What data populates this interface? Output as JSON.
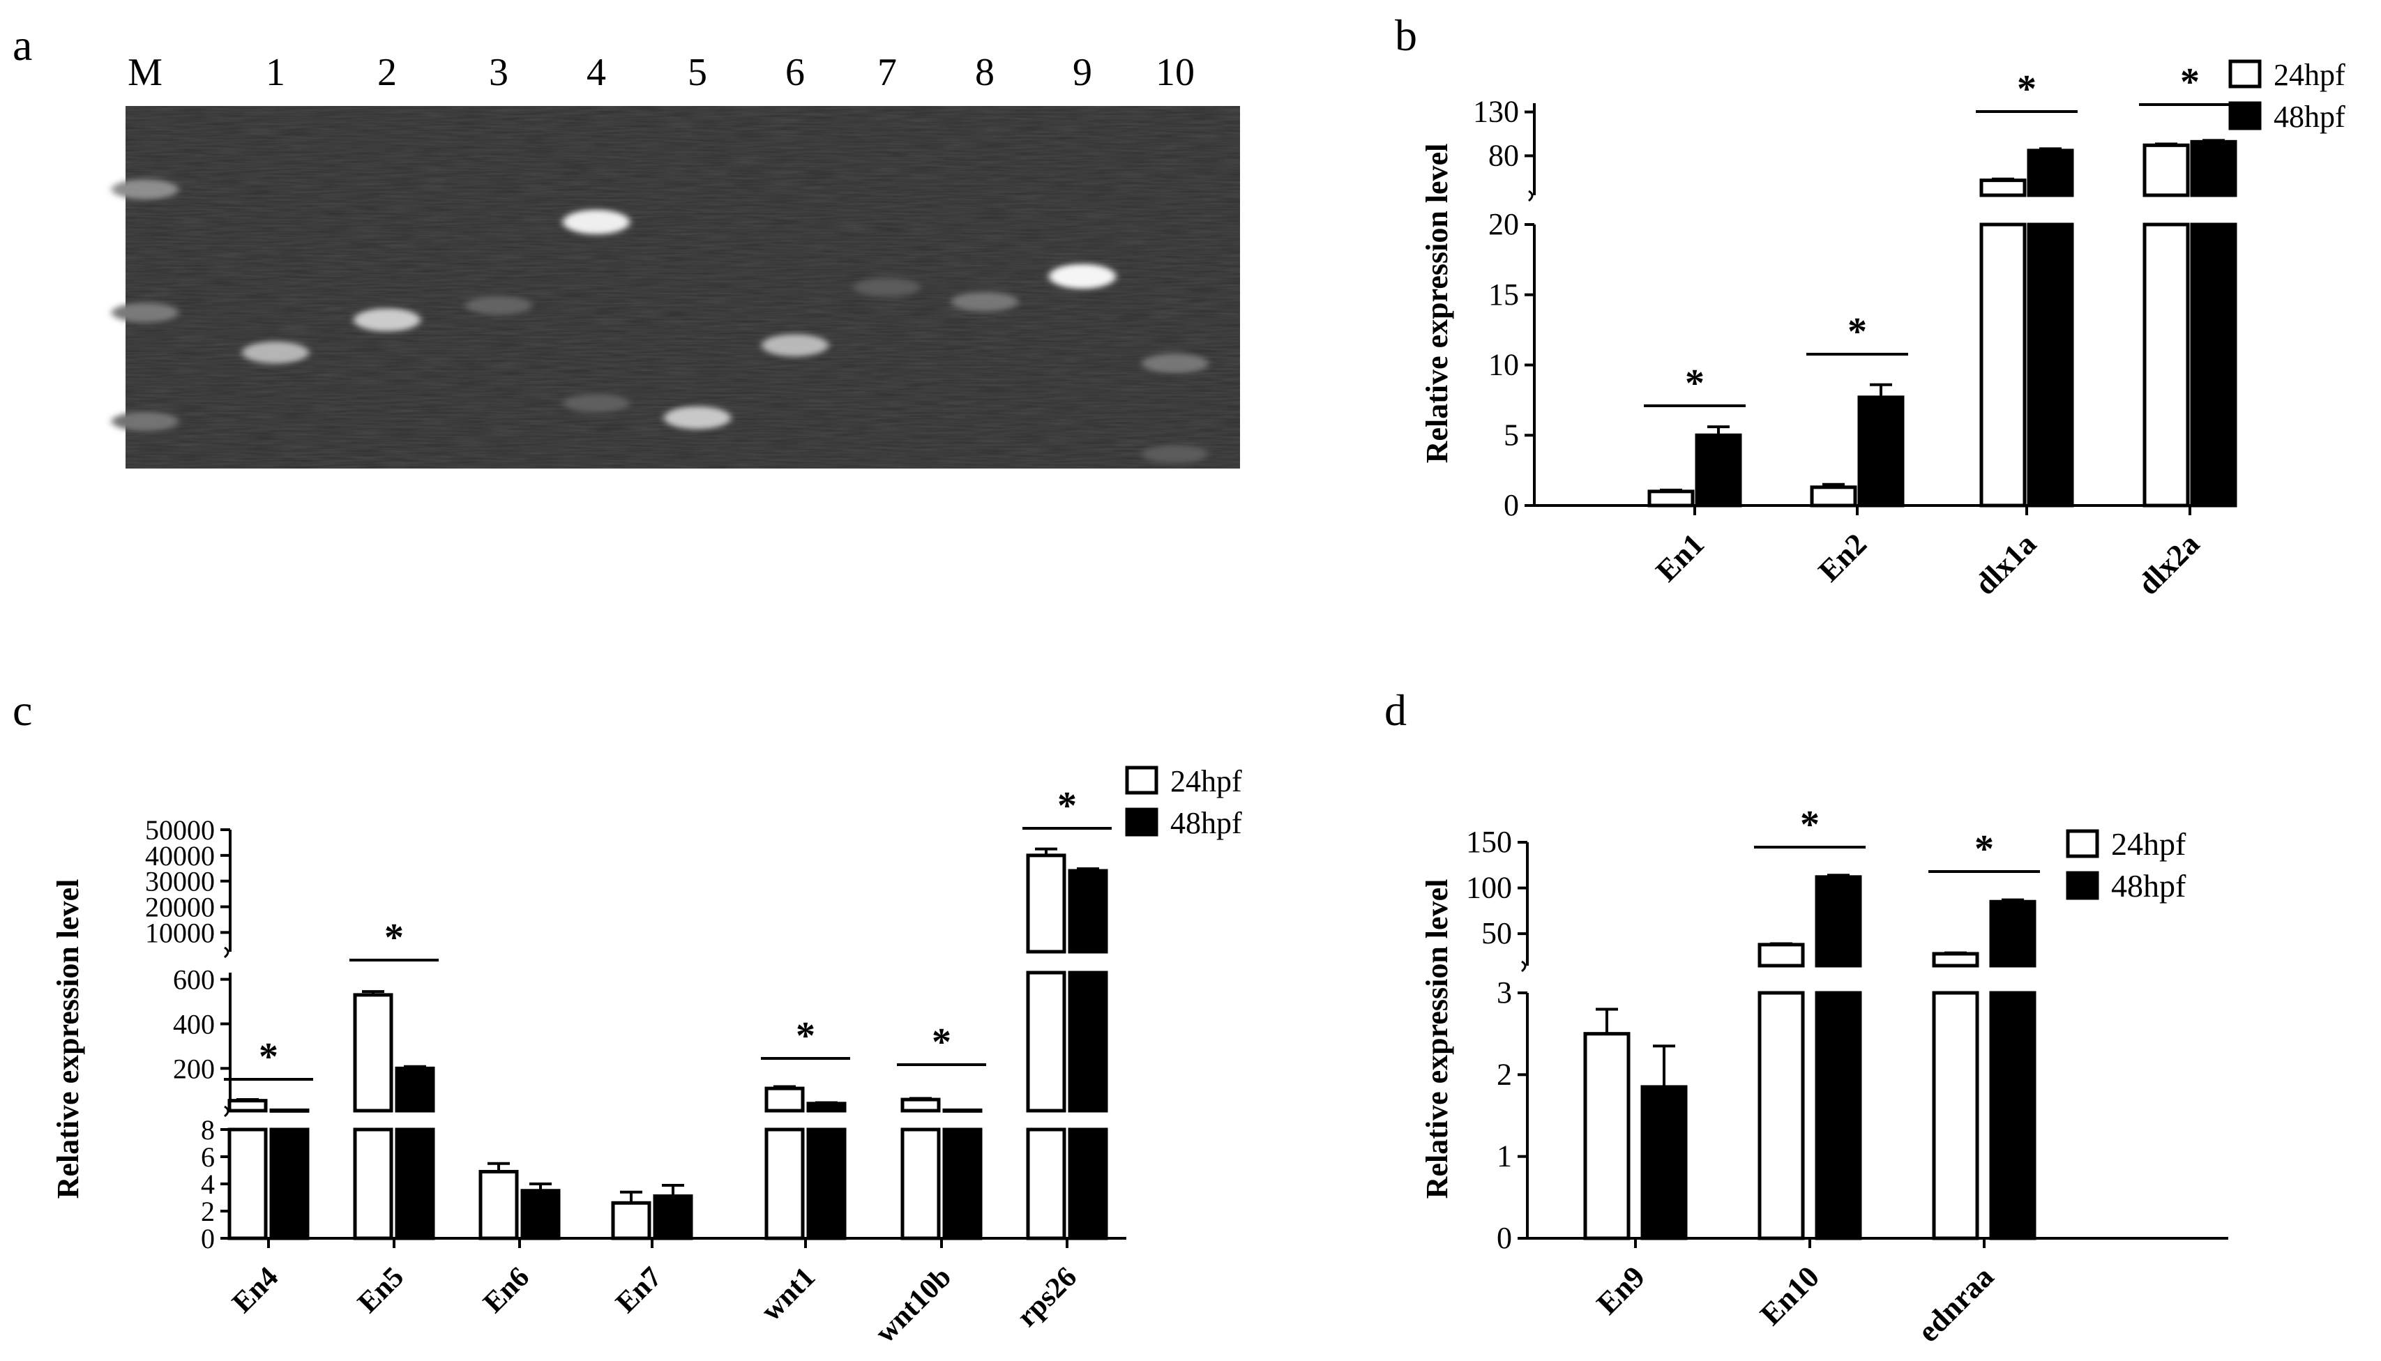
{
  "figure": {
    "panel_labels": {
      "a": "a",
      "b": "b",
      "c": "c",
      "d": "d"
    }
  },
  "gel": {
    "lane_labels": [
      "M",
      "1",
      "2",
      "3",
      "4",
      "5",
      "6",
      "7",
      "8",
      "9",
      "10"
    ],
    "marker_bands": [
      0.23,
      0.57,
      0.87
    ],
    "bands": [
      {
        "lane": "M",
        "pos": 0.23,
        "intensity": 0.42
      },
      {
        "lane": "M",
        "pos": 0.57,
        "intensity": 0.32
      },
      {
        "lane": "M",
        "pos": 0.87,
        "intensity": 0.28
      },
      {
        "lane": "1",
        "pos": 0.68,
        "intensity": 0.62
      },
      {
        "lane": "2",
        "pos": 0.59,
        "intensity": 0.74
      },
      {
        "lane": "3",
        "pos": 0.55,
        "intensity": 0.2
      },
      {
        "lane": "4",
        "pos": 0.32,
        "intensity": 0.92
      },
      {
        "lane": "4",
        "pos": 0.82,
        "intensity": 0.18
      },
      {
        "lane": "5",
        "pos": 0.86,
        "intensity": 0.72
      },
      {
        "lane": "6",
        "pos": 0.66,
        "intensity": 0.64
      },
      {
        "lane": "7",
        "pos": 0.5,
        "intensity": 0.16
      },
      {
        "lane": "8",
        "pos": 0.54,
        "intensity": 0.3
      },
      {
        "lane": "9",
        "pos": 0.47,
        "intensity": 0.95
      },
      {
        "lane": "10",
        "pos": 0.71,
        "intensity": 0.3
      },
      {
        "lane": "10",
        "pos": 0.96,
        "intensity": 0.16
      }
    ]
  },
  "chart_data": [
    {
      "panel": "b",
      "type": "bar",
      "ylabel": "Relative expression level",
      "categories": [
        "En1",
        "En2",
        "dlx1a",
        "dlx2a"
      ],
      "series": [
        {
          "name": "24hpf",
          "values": [
            1.0,
            1.3,
            52,
            92
          ],
          "errors": [
            0.1,
            0.2,
            1.5,
            1.5
          ],
          "color": "#ffffff"
        },
        {
          "name": "48hpf",
          "values": [
            5.0,
            7.7,
            86,
            96
          ],
          "errors": [
            0.6,
            0.9,
            2,
            1.5
          ],
          "color": "#000000"
        }
      ],
      "y_axis_segments": [
        {
          "range": [
            0,
            20
          ],
          "ticks": [
            0,
            5,
            10,
            15,
            20
          ],
          "tick_labels": [
            "0",
            "5",
            "10",
            "15",
            "20"
          ]
        },
        {
          "range": [
            35,
            140
          ],
          "ticks": [
            80,
            130
          ],
          "tick_labels": [
            "80",
            "130"
          ]
        }
      ],
      "significance": [
        {
          "category": "En1",
          "label": "*"
        },
        {
          "category": "En2",
          "label": "*"
        },
        {
          "category": "dlx1a",
          "label": "*"
        },
        {
          "category": "dlx2a",
          "label": "*"
        }
      ],
      "legend": {
        "position": "top-right",
        "entries": [
          "24hpf",
          "48hpf"
        ]
      }
    },
    {
      "panel": "c",
      "type": "bar",
      "ylabel": "Relative expression level",
      "categories": [
        "En4",
        "En5",
        "En6",
        "En7",
        "wnt1",
        "wnt10b",
        "rps26"
      ],
      "series": [
        {
          "name": "24hpf",
          "values": [
            55,
            530,
            4.9,
            2.6,
            110,
            60,
            40000
          ],
          "errors": [
            5,
            15,
            0.6,
            0.8,
            8,
            5,
            2500
          ],
          "color": "#ffffff"
        },
        {
          "name": "48hpf",
          "values": [
            12,
            200,
            3.5,
            3.1,
            42,
            12,
            34000
          ],
          "errors": [
            2,
            8,
            0.5,
            0.8,
            4,
            2,
            800
          ],
          "color": "#000000"
        }
      ],
      "y_axis_segments": [
        {
          "range": [
            0,
            8
          ],
          "ticks": [
            0,
            2,
            4,
            6,
            8
          ],
          "tick_labels": [
            "0",
            "2",
            "4",
            "6",
            "8"
          ]
        },
        {
          "range": [
            10,
            630
          ],
          "ticks": [
            200,
            400,
            600
          ],
          "tick_labels": [
            "200",
            "400",
            "600"
          ]
        },
        {
          "range": [
            2500,
            50000
          ],
          "ticks": [
            10000,
            20000,
            30000,
            40000,
            50000
          ],
          "tick_labels": [
            "10000",
            "20000",
            "30000",
            "40000",
            "50000"
          ]
        }
      ],
      "significance": [
        {
          "category": "En4",
          "label": "*"
        },
        {
          "category": "En5",
          "label": "*"
        },
        {
          "category": "wnt1",
          "label": "*"
        },
        {
          "category": "wnt10b",
          "label": "*"
        },
        {
          "category": "rps26",
          "label": "*"
        }
      ],
      "legend": {
        "position": "top-right",
        "entries": [
          "24hpf",
          "48hpf"
        ]
      }
    },
    {
      "panel": "d",
      "type": "bar",
      "ylabel": "Relative expression level",
      "categories": [
        "En9",
        "En10",
        "ednraa"
      ],
      "series": [
        {
          "name": "24hpf",
          "values": [
            2.5,
            38,
            28
          ],
          "errors": [
            0.3,
            1,
            1
          ],
          "color": "#ffffff"
        },
        {
          "name": "48hpf",
          "values": [
            1.85,
            112,
            85
          ],
          "errors": [
            0.5,
            2,
            2
          ],
          "color": "#000000"
        }
      ],
      "y_axis_segments": [
        {
          "range": [
            0,
            3
          ],
          "ticks": [
            0,
            1,
            2,
            3
          ],
          "tick_labels": [
            "0",
            "1",
            "2",
            "3"
          ]
        },
        {
          "range": [
            15,
            150
          ],
          "ticks": [
            50,
            100,
            150
          ],
          "tick_labels": [
            "50",
            "100",
            "150"
          ]
        }
      ],
      "significance": [
        {
          "category": "En10",
          "label": "*"
        },
        {
          "category": "ednraa",
          "label": "*"
        }
      ],
      "legend": {
        "position": "top-right",
        "entries": [
          "24hpf",
          "48hpf"
        ]
      }
    }
  ]
}
